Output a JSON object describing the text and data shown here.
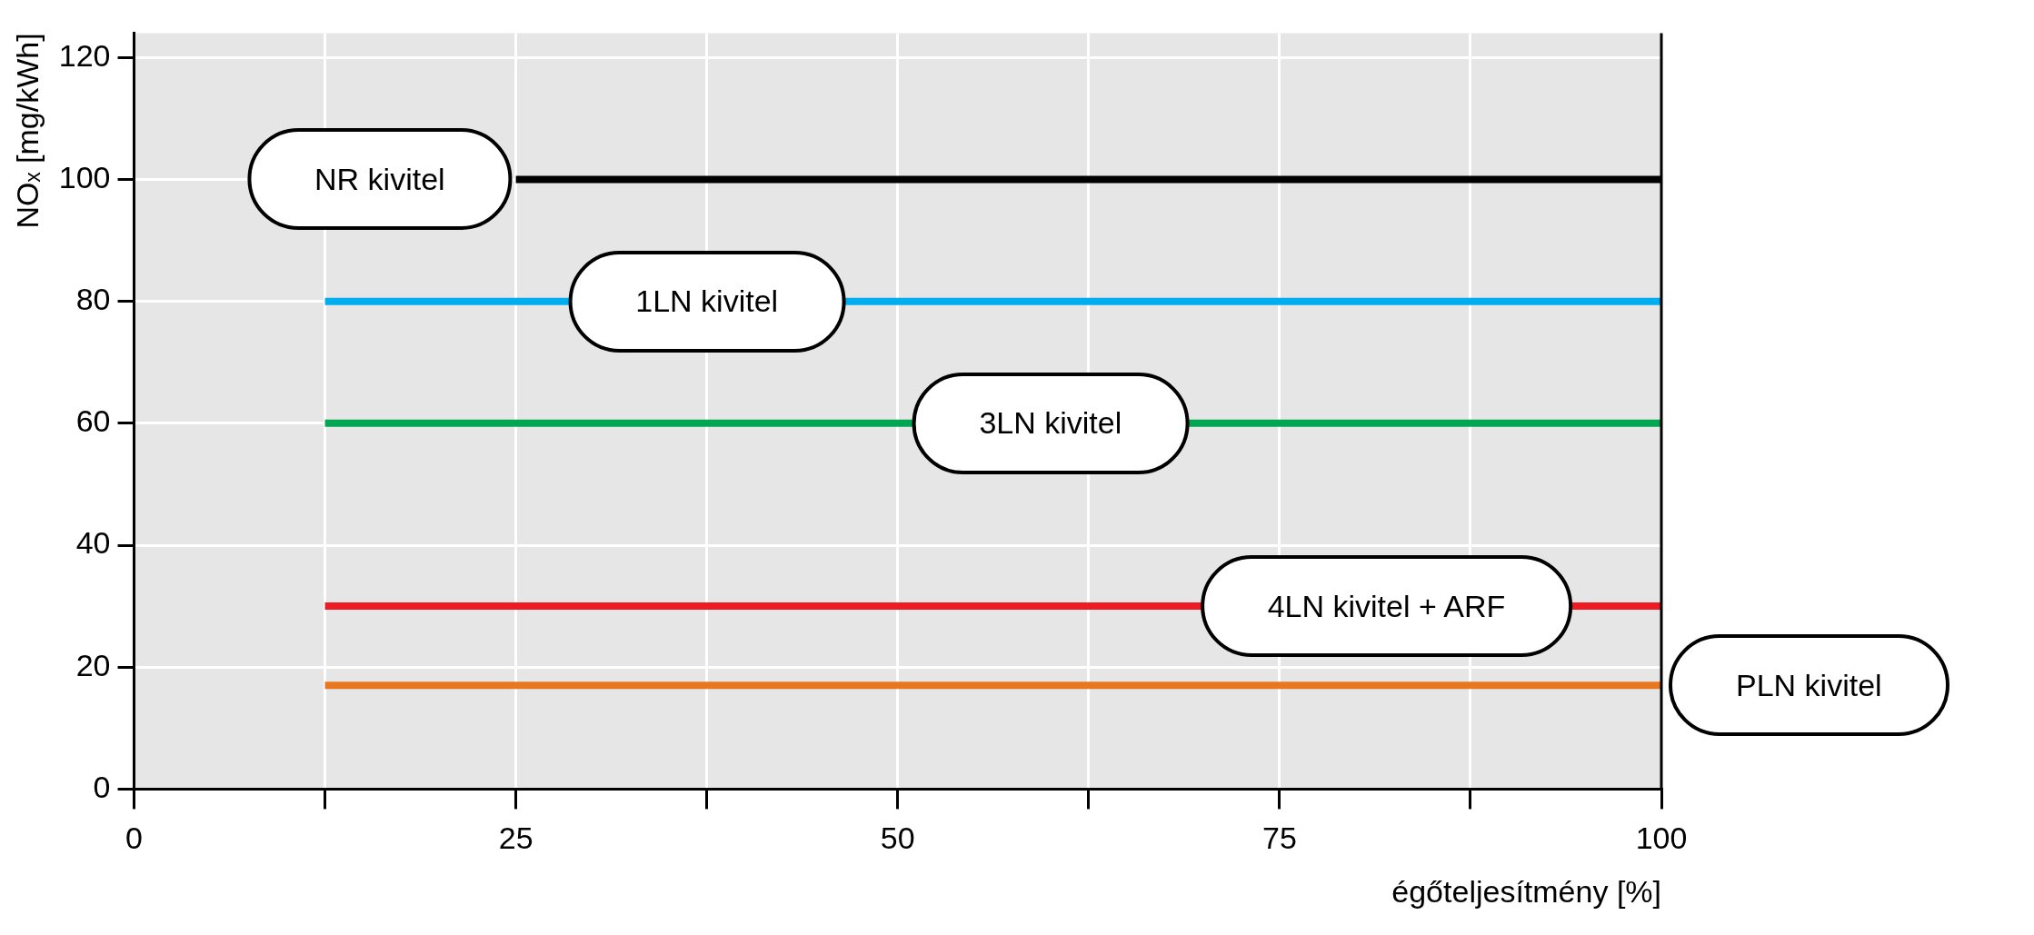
{
  "chart_data": {
    "type": "line",
    "xlabel": "égőteljesítmény [%]",
    "ylabel": "NOₓ [mg/kWh]",
    "xlim": [
      0,
      100
    ],
    "ylim": [
      0,
      124
    ],
    "xticks": [
      0,
      {
        "value": 12.5,
        "label": null
      },
      25,
      {
        "value": 37.5,
        "label": null
      },
      50,
      {
        "value": 62.5,
        "label": null
      },
      75,
      {
        "value": 87.5,
        "label": null
      },
      100
    ],
    "yticks": [
      0,
      20,
      40,
      60,
      80,
      100,
      120
    ],
    "grid": true,
    "legend": false,
    "marker": "none",
    "line_style": "solid",
    "series": [
      {
        "color": "#000000",
        "x": [
          25,
          100
        ],
        "values": [
          100,
          100
        ]
      },
      {
        "color": "#00aeef",
        "x": [
          12.5,
          100
        ],
        "values": [
          80,
          80
        ]
      },
      {
        "color": "#00a651",
        "x": [
          12.5,
          100
        ],
        "values": [
          60,
          60
        ]
      },
      {
        "color": "#ed1c24",
        "x": [
          12.5,
          100
        ],
        "values": [
          30,
          30
        ]
      },
      {
        "color": "#e87722",
        "x": [
          12.5,
          100
        ],
        "values": [
          17,
          17
        ]
      }
    ],
    "annotations": [
      "NR kivitel",
      {
        "text": "1LN kivitel",
        "x": 37.5,
        "y": 80
      },
      {
        "text": "3LN kivitel",
        "x": 60,
        "y": 60
      },
      {
        "text": "4LN kivitel + ARF",
        "x": 82,
        "y": 30
      },
      "PLN kivitel"
    ]
  }
}
